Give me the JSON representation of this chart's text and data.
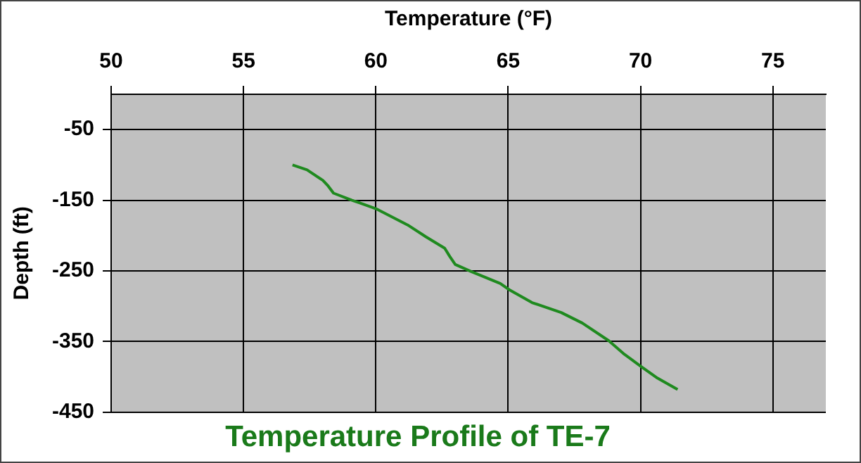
{
  "chart_data": {
    "type": "line",
    "title": "Temperature Profile of TE-7",
    "xlabel": "Temperature (°F)",
    "ylabel": "Depth (ft)",
    "xlim": [
      50,
      77
    ],
    "xticks": [
      50,
      55,
      60,
      65,
      70,
      75
    ],
    "ylim": [
      -450,
      0
    ],
    "yticks": [
      -450,
      -350,
      -250,
      -150,
      -50
    ],
    "grid": true,
    "legend": false,
    "marker": "none",
    "line_style": "solid",
    "series": [
      {
        "color": "#1f8a1f",
        "x": [
          56.85,
          57.4,
          58.0,
          58.2,
          58.4,
          59.1,
          60.0,
          61.2,
          61.9,
          62.6,
          62.8,
          63.0,
          63.6,
          64.7,
          65.05,
          65.9,
          67.0,
          67.8,
          68.8,
          69.35,
          70.0,
          70.6,
          71.4
        ],
        "values": [
          -100,
          -107,
          -122,
          -130,
          -140,
          -150,
          -162,
          -185,
          -202,
          -218,
          -230,
          -241,
          -251,
          -268,
          -277,
          -295,
          -309,
          -324,
          -349,
          -367,
          -385,
          -401,
          -418
        ]
      }
    ]
  }
}
